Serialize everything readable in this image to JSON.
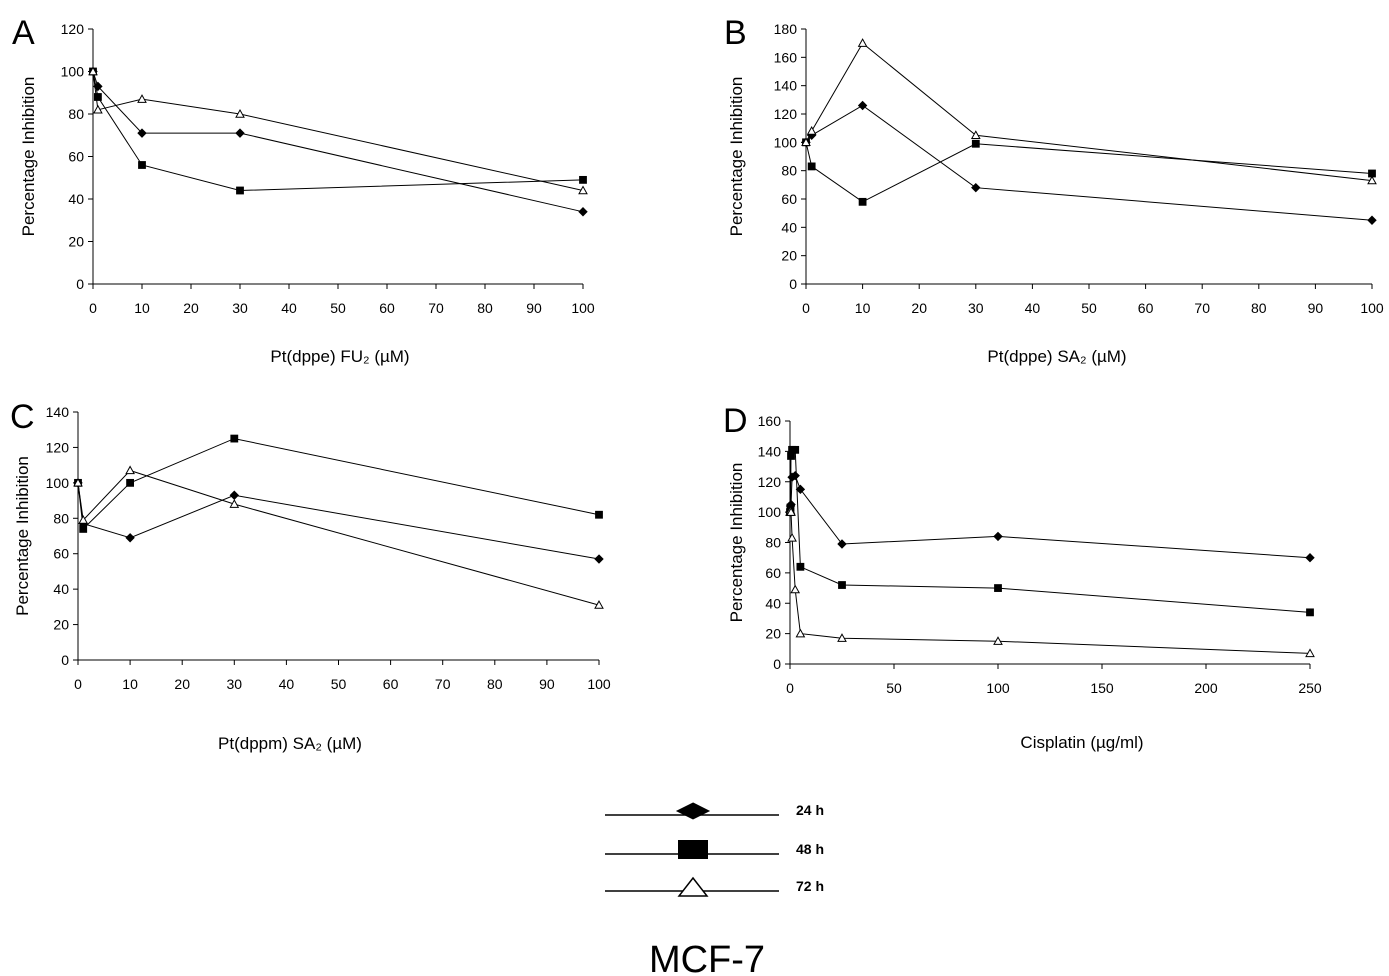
{
  "figure_title": "MCF-7",
  "legend": [
    {
      "label": "24 h",
      "marker": "diamond"
    },
    {
      "label": "48 h",
      "marker": "square"
    },
    {
      "label": "72 h",
      "marker": "triangle"
    }
  ],
  "chart_data": [
    {
      "type": "line",
      "panel": "A",
      "xlabel": "Pt(dppe) FU₂  (µM)",
      "ylabel": "Percentage Inhibition",
      "xlim": [
        0,
        100
      ],
      "ylim": [
        0,
        120
      ],
      "xticks": [
        0,
        10,
        20,
        30,
        40,
        50,
        60,
        70,
        80,
        90,
        100
      ],
      "yticks": [
        0,
        20,
        40,
        60,
        80,
        100,
        120
      ],
      "series": [
        {
          "name": "24 h",
          "marker": "diamond",
          "x": [
            0,
            1,
            10,
            30,
            100
          ],
          "y": [
            100,
            93,
            71,
            71,
            34
          ]
        },
        {
          "name": "48 h",
          "marker": "square",
          "x": [
            0,
            1,
            10,
            30,
            100
          ],
          "y": [
            100,
            88,
            56,
            44,
            49
          ]
        },
        {
          "name": "72 h",
          "marker": "triangle",
          "x": [
            0,
            1,
            10,
            30,
            100
          ],
          "y": [
            100,
            82,
            87,
            80,
            44
          ]
        }
      ]
    },
    {
      "type": "line",
      "panel": "B",
      "xlabel": "Pt(dppe) SA₂  (µM)",
      "ylabel": "Percentage Inhibition",
      "xlim": [
        0,
        100
      ],
      "ylim": [
        0,
        180
      ],
      "xticks": [
        0,
        10,
        20,
        30,
        40,
        50,
        60,
        70,
        80,
        90,
        100
      ],
      "yticks": [
        0,
        20,
        40,
        60,
        80,
        100,
        120,
        140,
        160,
        180
      ],
      "series": [
        {
          "name": "24 h",
          "marker": "diamond",
          "x": [
            0,
            1,
            10,
            30,
            100
          ],
          "y": [
            100,
            105,
            126,
            68,
            45
          ]
        },
        {
          "name": "48 h",
          "marker": "square",
          "x": [
            0,
            1,
            10,
            30,
            100
          ],
          "y": [
            100,
            83,
            58,
            99,
            78
          ]
        },
        {
          "name": "72 h",
          "marker": "triangle",
          "x": [
            0,
            1,
            10,
            30,
            100
          ],
          "y": [
            100,
            108,
            170,
            105,
            73
          ]
        }
      ]
    },
    {
      "type": "line",
      "panel": "C",
      "xlabel": "Pt(dppm) SA₂  (µM)",
      "ylabel": "Percentage Inhibition",
      "xlim": [
        0,
        100
      ],
      "ylim": [
        0,
        140
      ],
      "xticks": [
        0,
        10,
        20,
        30,
        40,
        50,
        60,
        70,
        80,
        90,
        100
      ],
      "yticks": [
        0,
        20,
        40,
        60,
        80,
        100,
        120,
        140
      ],
      "series": [
        {
          "name": "24 h",
          "marker": "diamond",
          "x": [
            0,
            1,
            10,
            30,
            100
          ],
          "y": [
            100,
            77,
            69,
            93,
            57
          ]
        },
        {
          "name": "48 h",
          "marker": "square",
          "x": [
            0,
            1,
            10,
            30,
            100
          ],
          "y": [
            100,
            74,
            100,
            125,
            82
          ]
        },
        {
          "name": "72 h",
          "marker": "triangle",
          "x": [
            0,
            1,
            10,
            30,
            100
          ],
          "y": [
            100,
            79,
            107,
            88,
            31
          ]
        }
      ]
    },
    {
      "type": "line",
      "panel": "D",
      "xlabel": "Cisplatin (µg/ml)",
      "ylabel": "Percentage Inhibition",
      "xlim": [
        0,
        250
      ],
      "ylim": [
        0,
        160
      ],
      "xticks": [
        0,
        50,
        100,
        150,
        200,
        250
      ],
      "yticks": [
        0,
        20,
        40,
        60,
        80,
        100,
        120,
        140,
        160
      ],
      "series": [
        {
          "name": "24 h",
          "marker": "diamond",
          "x": [
            0,
            0.25,
            0.5,
            1,
            2.5,
            5,
            25,
            100,
            250
          ],
          "y": [
            100,
            104,
            105,
            123,
            124,
            115,
            79,
            84,
            70
          ]
        },
        {
          "name": "48 h",
          "marker": "square",
          "x": [
            0,
            0.25,
            0.5,
            1,
            2.5,
            5,
            25,
            100,
            250
          ],
          "y": [
            100,
            103,
            137,
            141,
            141,
            64,
            52,
            50,
            34
          ]
        },
        {
          "name": "72 h",
          "marker": "triangle",
          "x": [
            0,
            0.25,
            0.5,
            1,
            2.5,
            5,
            25,
            100,
            250
          ],
          "y": [
            100,
            101,
            100,
            83,
            49,
            20,
            17,
            15,
            7
          ]
        }
      ]
    }
  ]
}
